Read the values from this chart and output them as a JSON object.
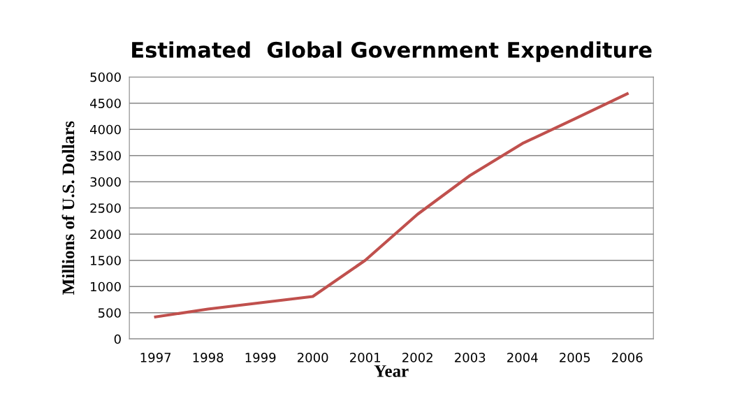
{
  "chart_data": {
    "type": "line",
    "title": "Estimated  Global Government Expenditure",
    "xlabel": "Year",
    "ylabel": "Millions of U.S. Dollars",
    "categories": [
      "1997",
      "1998",
      "1999",
      "2000",
      "2001",
      "2002",
      "2003",
      "2004",
      "2005",
      "2006"
    ],
    "series": [
      {
        "color": "#c0504d",
        "values": [
          420,
          570,
          690,
          810,
          1500,
          2380,
          3120,
          3730,
          4200,
          4680
        ]
      }
    ],
    "ylim": [
      0,
      5000
    ],
    "yticks": [
      0,
      500,
      1000,
      1500,
      2000,
      2500,
      3000,
      3500,
      4000,
      4500,
      5000
    ],
    "grid": "y",
    "legend": false,
    "marker": "none",
    "line_style": "solid"
  }
}
